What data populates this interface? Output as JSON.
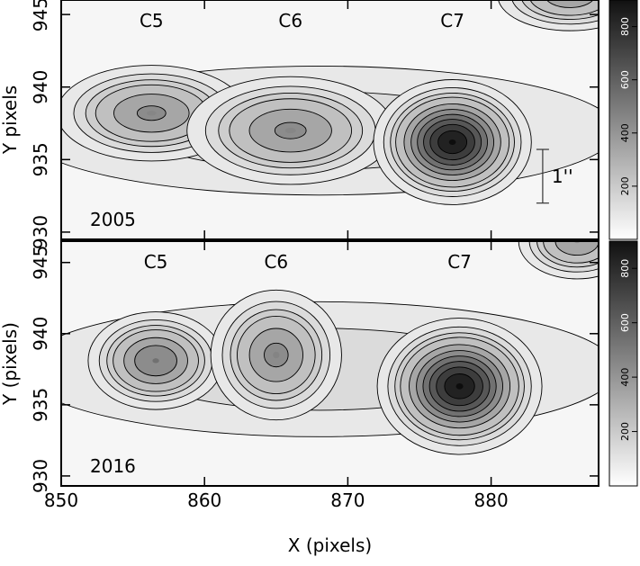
{
  "chart_data": [
    {
      "type": "contour",
      "panel_label": "2005",
      "ylabel": "Y pixels",
      "xlim": [
        850,
        887.5
      ],
      "xticks": [
        850,
        860,
        870,
        880
      ],
      "ylim": [
        929.5,
        946
      ],
      "yticks": [
        930,
        935,
        940,
        945
      ],
      "contour_levels": [
        50,
        100,
        150,
        200,
        300,
        400,
        500,
        600,
        700,
        800
      ],
      "colorbar": {
        "lim": [
          0,
          900
        ],
        "ticks": [
          200,
          400,
          600,
          800
        ]
      },
      "scale_bar": {
        "label": "1''",
        "length": 3.7
      },
      "sources": [
        {
          "x": 868,
          "y": 937,
          "peak": 150,
          "sx": 14,
          "sy": 3
        },
        {
          "label": "C5",
          "x": 856.3,
          "y": 938.2,
          "peak": 420,
          "sx": 3.2,
          "sy": 1.6
        },
        {
          "label": "C6",
          "x": 866,
          "y": 937,
          "peak": 420,
          "sx": 3.5,
          "sy": 1.8
        },
        {
          "label": "C7",
          "x": 877.3,
          "y": 936.2,
          "peak": 880,
          "sx": 2.3,
          "sy": 1.8
        },
        {
          "x": 885.5,
          "y": 946.3,
          "peak": 380,
          "sx": 2.5,
          "sy": 1.2
        }
      ]
    },
    {
      "type": "contour",
      "panel_label": "2016",
      "ylabel": "Y (pixels)",
      "xlabel": "X (pixels)",
      "xlim": [
        850,
        887.5
      ],
      "xticks": [
        850,
        860,
        870,
        880
      ],
      "ylim": [
        929.3,
        946.5
      ],
      "yticks": [
        930,
        935,
        940,
        945
      ],
      "contour_levels": [
        50,
        100,
        150,
        200,
        300,
        400,
        500,
        600,
        700,
        800
      ],
      "colorbar": {
        "lim": [
          0,
          900
        ],
        "ticks": [
          200,
          400,
          600,
          800
        ]
      },
      "sources": [
        {
          "x": 868,
          "y": 937.5,
          "peak": 150,
          "sx": 14,
          "sy": 3.2
        },
        {
          "label": "C5",
          "x": 856.6,
          "y": 938.1,
          "peak": 500,
          "sx": 2.2,
          "sy": 1.6
        },
        {
          "label": "C6",
          "x": 865,
          "y": 938.5,
          "peak": 430,
          "sx": 2.2,
          "sy": 2.2
        },
        {
          "label": "C7",
          "x": 877.8,
          "y": 936.3,
          "peak": 880,
          "sx": 2.4,
          "sy": 2
        },
        {
          "x": 886,
          "y": 946.5,
          "peak": 400,
          "sx": 2,
          "sy": 1.3
        }
      ]
    }
  ]
}
